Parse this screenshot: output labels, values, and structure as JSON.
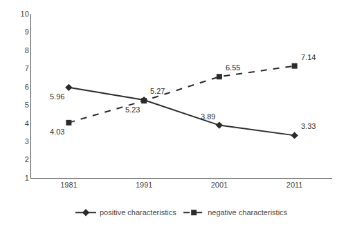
{
  "chart_data": {
    "type": "line",
    "x": [
      1981,
      1991,
      2001,
      2011
    ],
    "series": [
      {
        "name": "positive characteristics",
        "color": "#2b2b2b",
        "marker": "diamond",
        "line_style": "solid",
        "values": [
          5.96,
          5.27,
          3.89,
          3.33
        ]
      },
      {
        "name": "negative characteristics",
        "color": "#2b2b2b",
        "marker": "square",
        "line_style": "dashed",
        "values": [
          4.03,
          5.23,
          6.55,
          7.14
        ]
      }
    ],
    "xlim": [
      1976,
      2016
    ],
    "xticks": [
      1981,
      1991,
      2001,
      2011
    ],
    "ylim": [
      1,
      10
    ],
    "yticks": [
      1,
      2,
      3,
      4,
      5,
      6,
      7,
      8,
      9,
      10
    ],
    "grid": false,
    "legend": "bottom",
    "data_labels": true
  }
}
